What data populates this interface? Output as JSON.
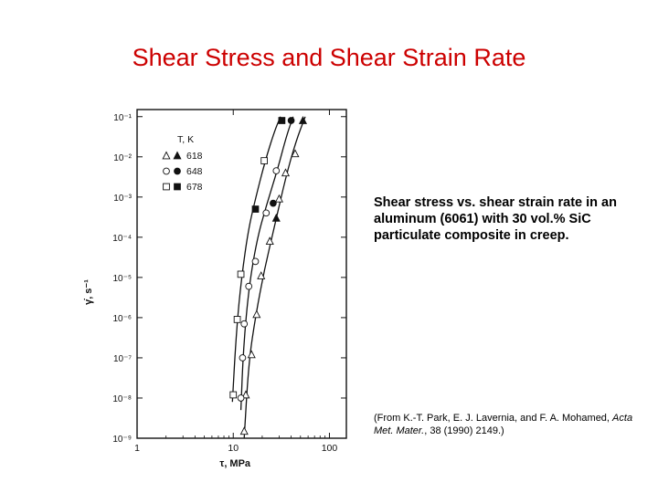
{
  "slide": {
    "title": "Shear Stress and Shear Strain Rate",
    "caption": "Shear stress vs. shear strain rate in an aluminum (6061) with 30 vol.% SiC particulate composite in creep.",
    "citation_prefix": "(From K.-T. Park, E. J. Lavernia, and F. A. Mohamed,",
    "citation_journal": "Acta Met. Mater.",
    "citation_suffix": ", 38 (1990) 2149.)"
  },
  "chart_data": {
    "type": "scatter",
    "x_scale": "log",
    "y_scale": "log",
    "xlabel": "τ, MPa",
    "ylabel": "γ̇, s⁻¹",
    "xlim": [
      1,
      150
    ],
    "ylim": [
      1e-09,
      0.15
    ],
    "x_ticks": [
      {
        "value": 1,
        "label": "1"
      },
      {
        "value": 10,
        "label": "10"
      },
      {
        "value": 100,
        "label": "100"
      }
    ],
    "y_ticks": [
      {
        "value": 0.1,
        "label": "10⁻¹"
      },
      {
        "value": 0.01,
        "label": "10⁻²"
      },
      {
        "value": 0.001,
        "label": "10⁻³"
      },
      {
        "value": 0.0001,
        "label": "10⁻⁴"
      },
      {
        "value": 1e-05,
        "label": "10⁻⁵"
      },
      {
        "value": 1e-06,
        "label": "10⁻⁶"
      },
      {
        "value": 1e-07,
        "label": "10⁻⁷"
      },
      {
        "value": 1e-08,
        "label": "10⁻⁸"
      },
      {
        "value": 1e-09,
        "label": "10⁻⁹"
      }
    ],
    "legend": {
      "title": "T, K",
      "placement": "top-left",
      "entries": [
        {
          "label": "618",
          "marker": "triangle"
        },
        {
          "label": "648",
          "marker": "circle"
        },
        {
          "label": "678",
          "marker": "square"
        }
      ]
    },
    "series": [
      {
        "name": "618",
        "marker": "triangle",
        "open_points": [
          [
            13,
            1.5e-09
          ],
          [
            13.5,
            1.2e-08
          ],
          [
            15.5,
            1.2e-07
          ],
          [
            17.5,
            1.2e-06
          ],
          [
            19.5,
            1.1e-05
          ],
          [
            24,
            8e-05
          ],
          [
            30,
            0.0009
          ],
          [
            35,
            0.004
          ],
          [
            44,
            0.012
          ]
        ],
        "filled_points": [
          [
            28,
            0.0003
          ],
          [
            53,
            0.08
          ]
        ]
      },
      {
        "name": "648",
        "marker": "circle",
        "open_points": [
          [
            12,
            1e-08
          ],
          [
            12.5,
            1e-07
          ],
          [
            13,
            7e-07
          ],
          [
            14.5,
            6e-06
          ],
          [
            17,
            2.5e-05
          ],
          [
            22,
            0.0004
          ],
          [
            28,
            0.0045
          ]
        ],
        "filled_points": [
          [
            26,
            0.0007
          ],
          [
            40,
            0.08
          ]
        ]
      },
      {
        "name": "678",
        "marker": "square",
        "open_points": [
          [
            10,
            1.2e-08
          ],
          [
            11,
            9e-07
          ],
          [
            12,
            1.2e-05
          ],
          [
            21,
            0.008
          ]
        ],
        "filled_points": [
          [
            17,
            0.0005
          ],
          [
            32,
            0.08
          ]
        ]
      }
    ],
    "fit_curves": [
      {
        "name": "678",
        "points": [
          [
            9.8,
            8e-09
          ],
          [
            10.8,
            5e-07
          ],
          [
            12.2,
            1e-05
          ],
          [
            14.3,
            0.00015
          ],
          [
            17.2,
            0.001
          ],
          [
            21.5,
            0.008
          ],
          [
            27,
            0.045
          ],
          [
            31,
            0.1
          ]
        ]
      },
      {
        "name": "648",
        "points": [
          [
            12,
            5e-09
          ],
          [
            12.8,
            2e-07
          ],
          [
            14.6,
            6e-06
          ],
          [
            17.5,
            8e-05
          ],
          [
            22,
            0.0006
          ],
          [
            29,
            0.005
          ],
          [
            36,
            0.035
          ],
          [
            42,
            0.1
          ]
        ]
      },
      {
        "name": "618",
        "points": [
          [
            13,
            1e-09
          ],
          [
            14.5,
            8e-08
          ],
          [
            17.2,
            1.2e-06
          ],
          [
            21,
            1.5e-05
          ],
          [
            27,
            0.0002
          ],
          [
            35,
            0.003
          ],
          [
            45,
            0.025
          ],
          [
            56,
            0.1
          ]
        ]
      }
    ]
  }
}
